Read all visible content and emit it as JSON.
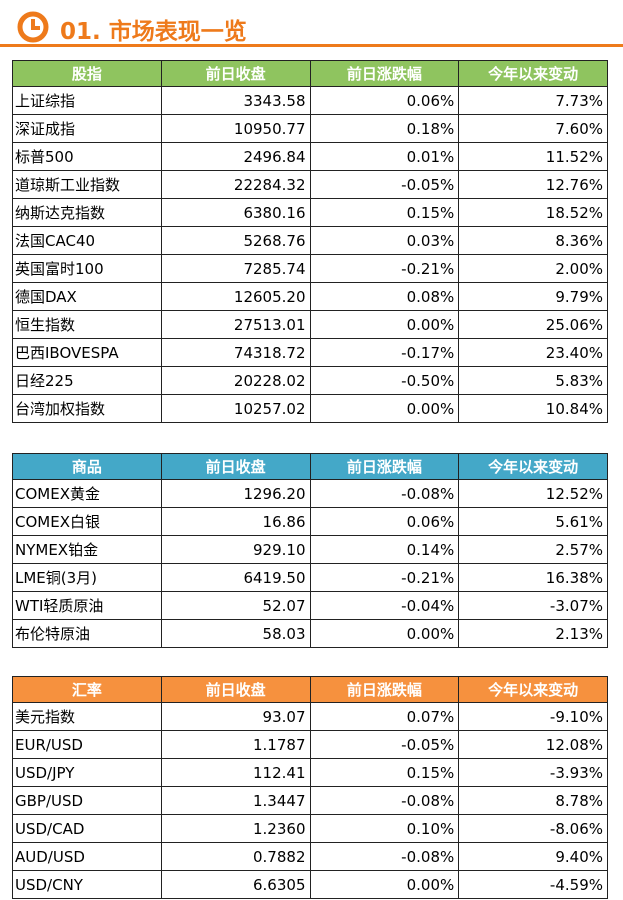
{
  "header": {
    "title": "01. 市场表现一览"
  },
  "tables": [
    {
      "columns": [
        "股指",
        "前日收盘",
        "前日涨跌幅",
        "今年以来变动"
      ],
      "rows": [
        [
          "上证综指",
          "3343.58",
          "0.06%",
          "7.73%"
        ],
        [
          "深证成指",
          "10950.77",
          "0.18%",
          "7.60%"
        ],
        [
          "标普500",
          "2496.84",
          "0.01%",
          "11.52%"
        ],
        [
          "道琼斯工业指数",
          "22284.32",
          "-0.05%",
          "12.76%"
        ],
        [
          "纳斯达克指数",
          "6380.16",
          "0.15%",
          "18.52%"
        ],
        [
          "法国CAC40",
          "5268.76",
          "0.03%",
          "8.36%"
        ],
        [
          "英国富时100",
          "7285.74",
          "-0.21%",
          "2.00%"
        ],
        [
          "德国DAX",
          "12605.20",
          "0.08%",
          "9.79%"
        ],
        [
          "恒生指数",
          "27513.01",
          "0.00%",
          "25.06%"
        ],
        [
          "巴西IBOVESPA",
          "74318.72",
          "-0.17%",
          "23.40%"
        ],
        [
          "日经225",
          "20228.02",
          "-0.50%",
          "5.83%"
        ],
        [
          "台湾加权指数",
          "10257.02",
          "0.00%",
          "10.84%"
        ]
      ]
    },
    {
      "columns": [
        "商品",
        "前日收盘",
        "前日涨跌幅",
        "今年以来变动"
      ],
      "rows": [
        [
          "COMEX黄金",
          "1296.20",
          "-0.08%",
          "12.52%"
        ],
        [
          "COMEX白银",
          "16.86",
          "0.06%",
          "5.61%"
        ],
        [
          "NYMEX铂金",
          "929.10",
          "0.14%",
          "2.57%"
        ],
        [
          "LME铜(3月)",
          "6419.50",
          "-0.21%",
          "16.38%"
        ],
        [
          "WTI轻质原油",
          "52.07",
          "-0.04%",
          "-3.07%"
        ],
        [
          "布伦特原油",
          "58.03",
          "0.00%",
          "2.13%"
        ]
      ]
    },
    {
      "columns": [
        "汇率",
        "前日收盘",
        "前日涨跌幅",
        "今年以来变动"
      ],
      "rows": [
        [
          "美元指数",
          "93.07",
          "0.07%",
          "-9.10%"
        ],
        [
          "EUR/USD",
          "1.1787",
          "-0.05%",
          "12.08%"
        ],
        [
          "USD/JPY",
          "112.41",
          "0.15%",
          "-3.93%"
        ],
        [
          "GBP/USD",
          "1.3447",
          "-0.08%",
          "8.78%"
        ],
        [
          "USD/CAD",
          "1.2360",
          "0.10%",
          "-8.06%"
        ],
        [
          "AUD/USD",
          "0.7882",
          "-0.08%",
          "9.40%"
        ],
        [
          "USD/CNY",
          "6.6305",
          "0.00%",
          "-4.59%"
        ]
      ]
    }
  ]
}
